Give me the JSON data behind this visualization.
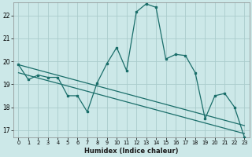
{
  "xlabel": "Humidex (Indice chaleur)",
  "bg_color": "#cce8e8",
  "grid_color": "#aacccc",
  "line_color": "#1a6e6a",
  "xlim": [
    -0.5,
    23.5
  ],
  "ylim": [
    16.7,
    22.55
  ],
  "yticks": [
    17,
    18,
    19,
    20,
    21,
    22
  ],
  "xticks": [
    0,
    1,
    2,
    3,
    4,
    5,
    6,
    7,
    8,
    9,
    10,
    11,
    12,
    13,
    14,
    15,
    16,
    17,
    18,
    19,
    20,
    21,
    22,
    23
  ],
  "series1_x": [
    0,
    1,
    2,
    3,
    4,
    5,
    6,
    7,
    8,
    9,
    10,
    11,
    12,
    13,
    14,
    15,
    16,
    17,
    18,
    19,
    20,
    21,
    22,
    23
  ],
  "series1_y": [
    19.85,
    19.2,
    19.4,
    19.3,
    19.3,
    18.5,
    18.5,
    17.8,
    19.05,
    19.9,
    20.6,
    19.6,
    22.15,
    22.5,
    22.35,
    20.1,
    20.3,
    20.25,
    19.5,
    17.5,
    18.5,
    18.6,
    18.0,
    16.7
  ],
  "series2_x": [
    0,
    23
  ],
  "series2_y": [
    19.85,
    17.2
  ],
  "series3_x": [
    0,
    23
  ],
  "series3_y": [
    19.5,
    16.85
  ]
}
